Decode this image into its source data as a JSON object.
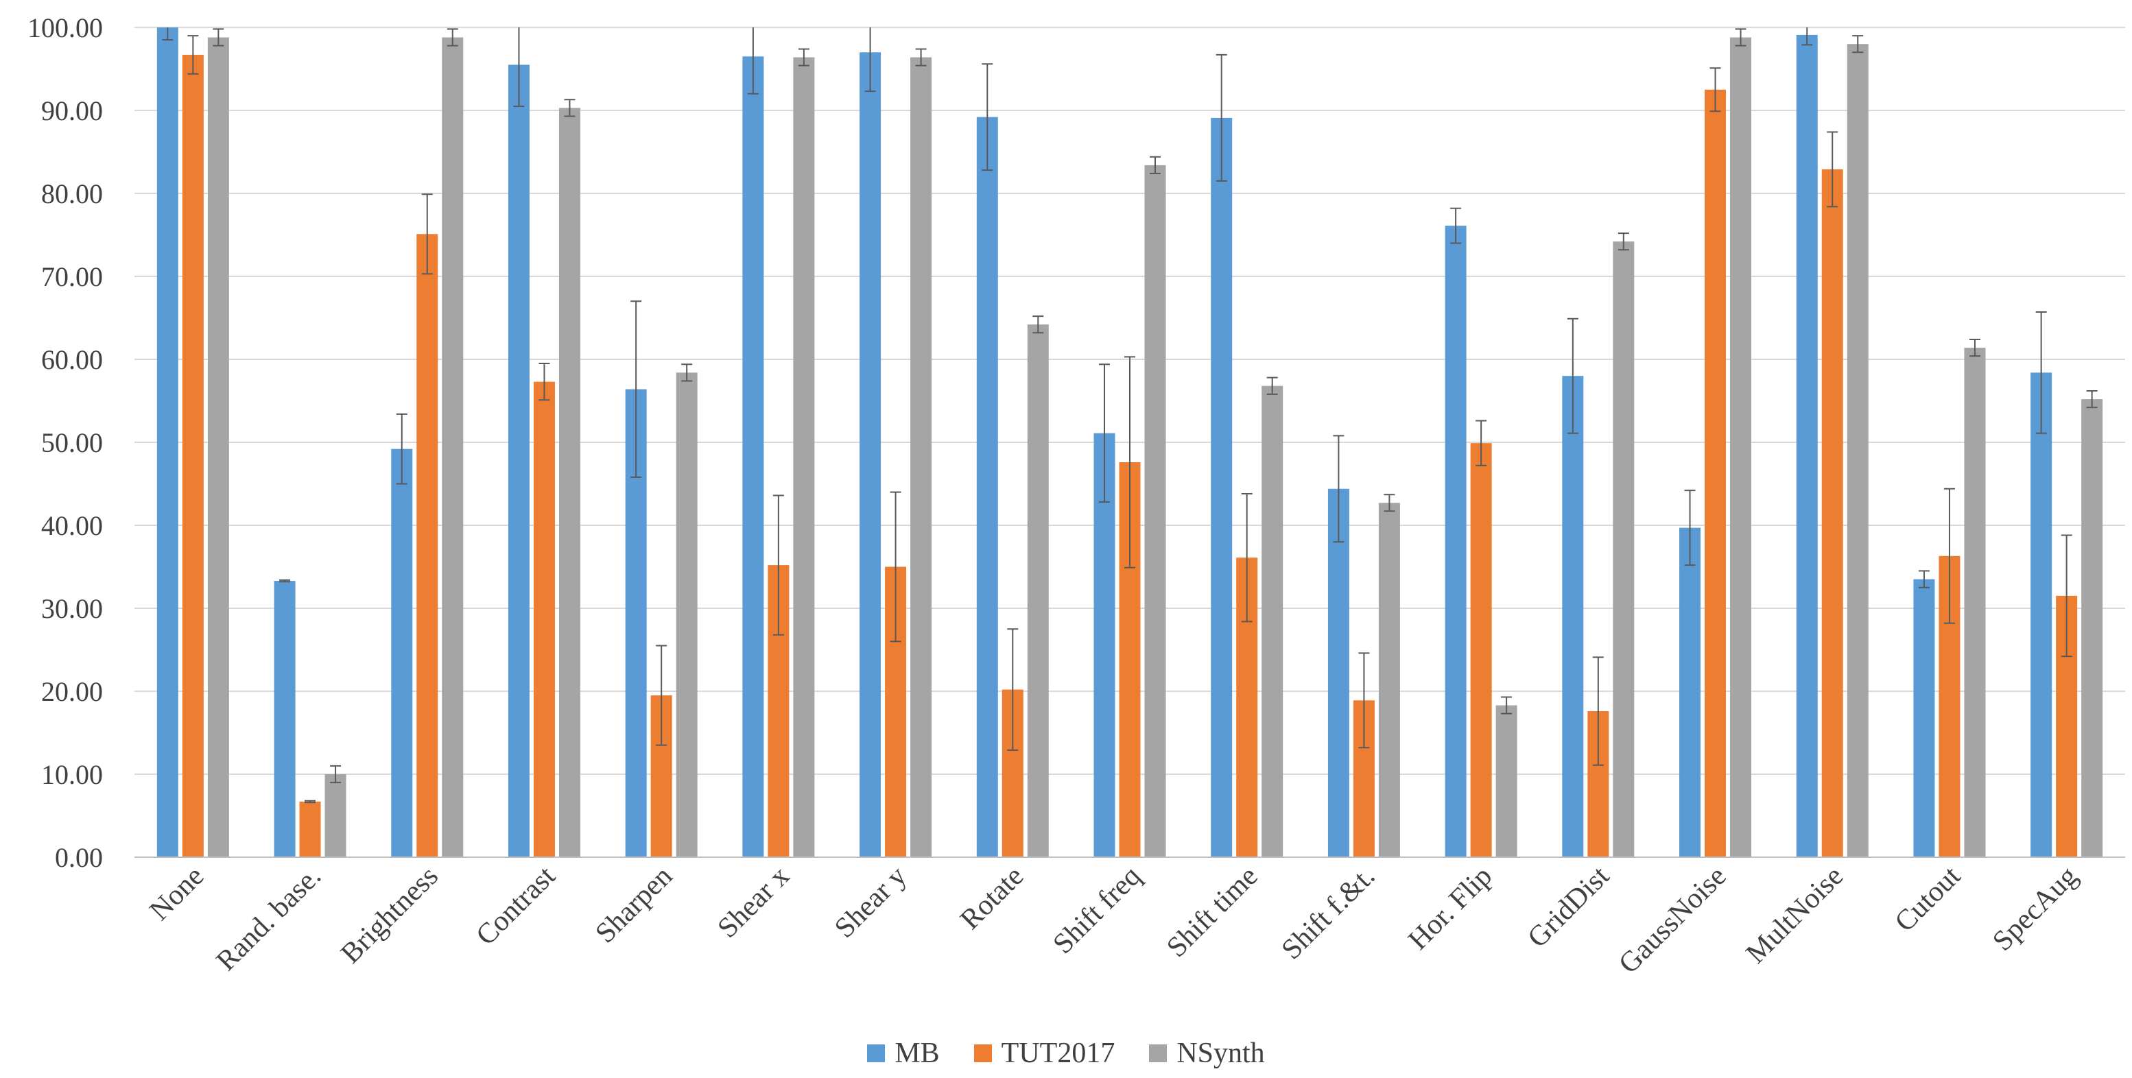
{
  "chart_data": {
    "type": "bar",
    "title": "",
    "xlabel": "",
    "ylabel": "",
    "ylim": [
      0,
      100
    ],
    "y_ticks": [
      "0.00",
      "10.00",
      "20.00",
      "30.00",
      "40.00",
      "50.00",
      "60.00",
      "70.00",
      "80.00",
      "90.00",
      "100.00"
    ],
    "grid": true,
    "legend_position": "bottom",
    "categories": [
      "None",
      "Rand. base.",
      "Brightness",
      "Contrast",
      "Sharpen",
      "Shear x",
      "Shear y",
      "Rotate",
      "Shift freq",
      "Shift time",
      "Shift f.&t.",
      "Hor. Flip",
      "GridDist",
      "GaussNoise",
      "MultNoise",
      "Cutout",
      "SpecAug"
    ],
    "series": [
      {
        "name": "MB",
        "color": "#5b9bd5",
        "values": [
          100.0,
          33.3,
          49.2,
          95.5,
          56.4,
          96.5,
          97.0,
          89.2,
          51.1,
          89.1,
          44.4,
          76.1,
          58.0,
          39.7,
          99.1,
          33.5,
          58.4
        ],
        "errors": [
          1.5,
          0.1,
          4.2,
          5.0,
          10.6,
          4.5,
          4.7,
          6.4,
          8.3,
          7.6,
          6.4,
          2.1,
          6.9,
          4.5,
          1.2,
          1.0,
          7.3
        ]
      },
      {
        "name": "TUT2017",
        "color": "#ed7d31",
        "values": [
          96.7,
          6.7,
          75.1,
          57.3,
          19.5,
          35.2,
          35.0,
          20.2,
          47.6,
          36.1,
          18.9,
          49.9,
          17.6,
          92.5,
          82.9,
          36.3,
          31.5
        ],
        "errors": [
          2.3,
          0.1,
          4.8,
          2.2,
          6.0,
          8.4,
          9.0,
          7.3,
          12.7,
          7.7,
          5.7,
          2.7,
          6.5,
          2.6,
          4.5,
          8.1,
          7.3
        ]
      },
      {
        "name": "NSynth",
        "color": "#a5a5a5",
        "values": [
          98.8,
          10.0,
          98.8,
          90.3,
          58.4,
          96.4,
          96.4,
          64.2,
          83.4,
          56.8,
          42.7,
          18.3,
          74.2,
          98.8,
          98.0,
          61.4,
          55.2
        ],
        "errors": [
          1.0,
          1.0,
          1.0,
          1.0,
          1.0,
          1.0,
          1.0,
          1.0,
          1.0,
          1.0,
          1.0,
          1.0,
          1.0,
          1.0,
          1.0,
          1.0,
          1.0
        ]
      }
    ]
  }
}
